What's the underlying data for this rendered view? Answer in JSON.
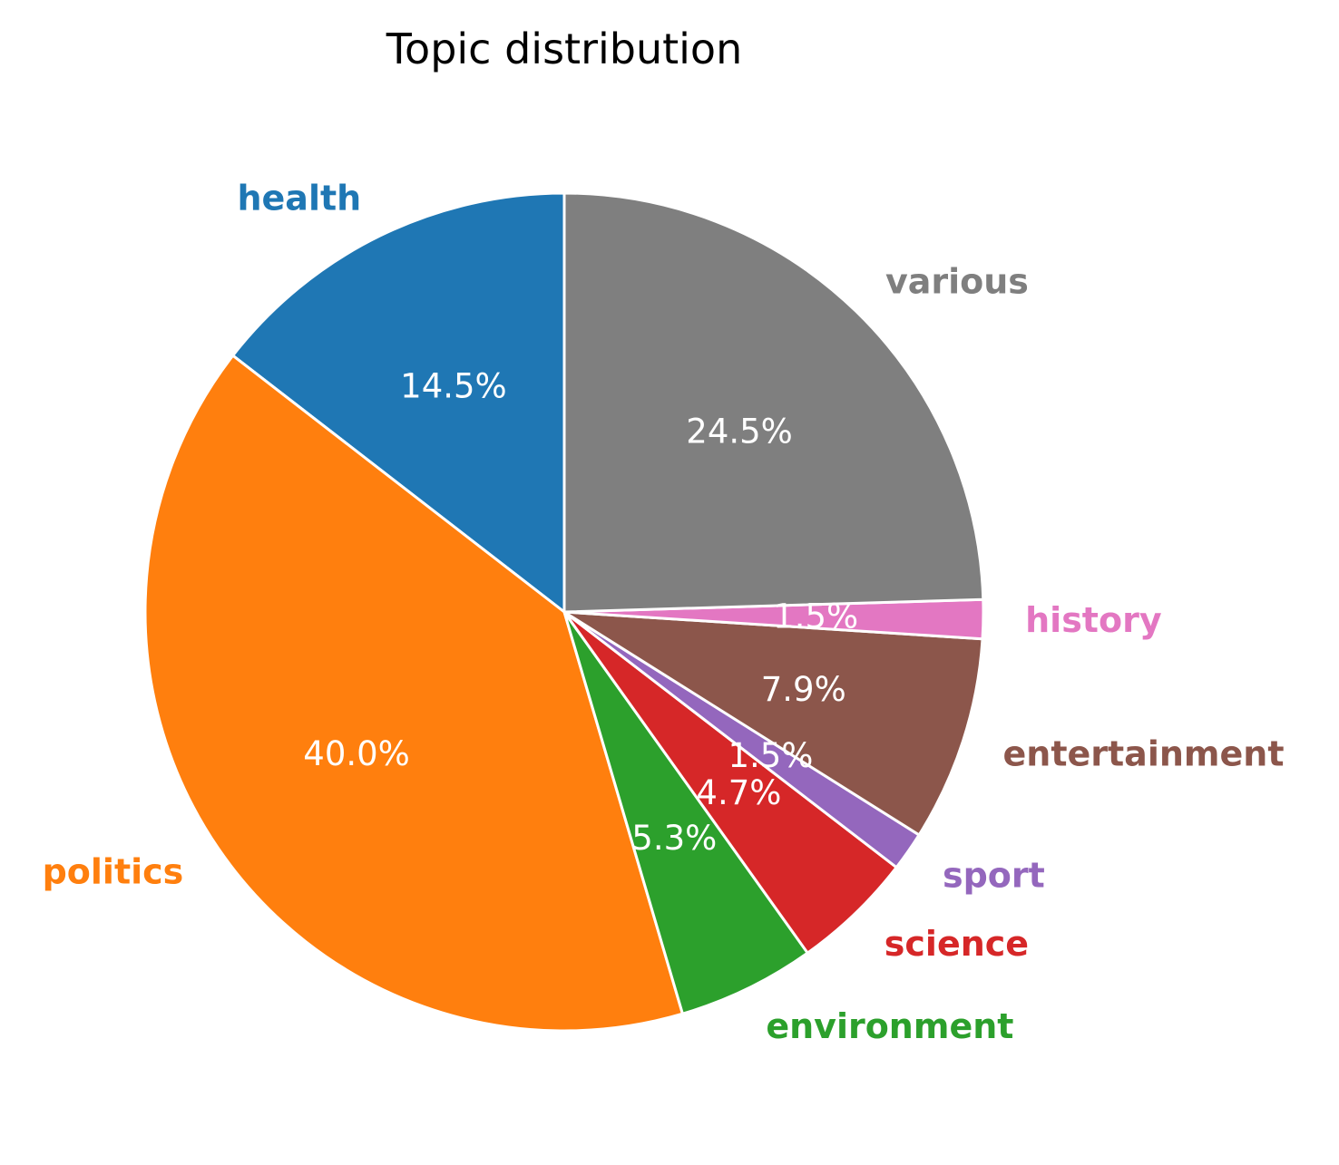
{
  "chart_data": {
    "type": "pie",
    "title": "Topic distribution",
    "slices": [
      {
        "label": "health",
        "value": 14.5,
        "pct_label": "14.5%",
        "color": "#1f77b4"
      },
      {
        "label": "politics",
        "value": 40.0,
        "pct_label": "40.0%",
        "color": "#ff7f0e"
      },
      {
        "label": "environment",
        "value": 5.3,
        "pct_label": "5.3%",
        "color": "#2ca02c"
      },
      {
        "label": "science",
        "value": 4.7,
        "pct_label": "4.7%",
        "color": "#d62728"
      },
      {
        "label": "sport",
        "value": 1.5,
        "pct_label": "1.5%",
        "color": "#9467bd"
      },
      {
        "label": "entertainment",
        "value": 7.9,
        "pct_label": "7.9%",
        "color": "#8c564b"
      },
      {
        "label": "history",
        "value": 1.5,
        "pct_label": "1.5%",
        "color": "#e377c2"
      },
      {
        "label": "various",
        "value": 24.5,
        "pct_label": "24.5%",
        "color": "#7f7f7f"
      }
    ],
    "start_angle": "top",
    "direction": "counterclockwise",
    "legend": "none"
  }
}
